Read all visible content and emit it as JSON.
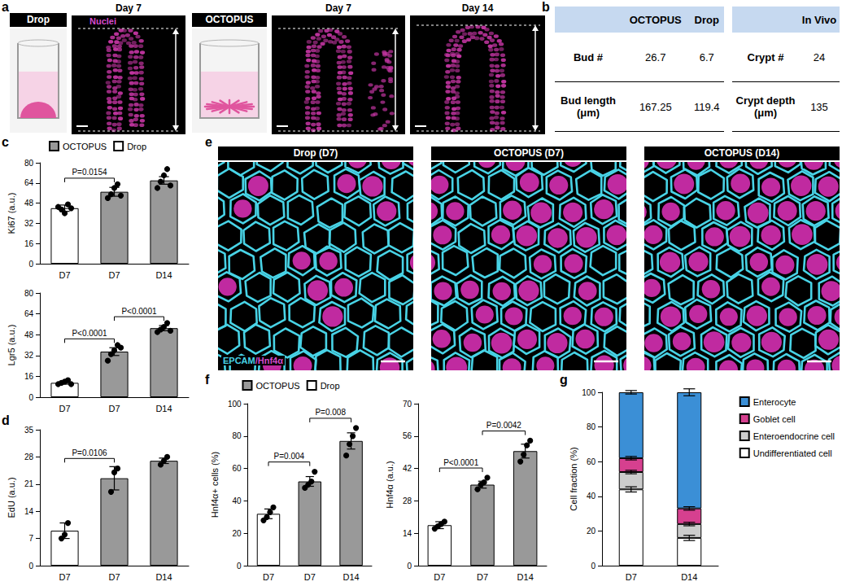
{
  "panel_labels": [
    "a",
    "b",
    "c",
    "d",
    "e",
    "f",
    "g"
  ],
  "panel_a": [
    {
      "header": "Drop",
      "images": [
        {
          "title": "Day 7",
          "stain": "Nuclei"
        }
      ]
    },
    {
      "header": "OCTOPUS",
      "images": [
        {
          "title": "Day 7"
        },
        {
          "title": "Day 14"
        }
      ]
    }
  ],
  "table": {
    "left": {
      "header": [
        "OCTOPUS",
        "Drop"
      ],
      "rows": [
        [
          "Bud #",
          26.7,
          6.7
        ],
        [
          "Bud length (μm)",
          167.25,
          119.4
        ]
      ]
    },
    "right": {
      "header": [
        "In Vivo"
      ],
      "rows": [
        [
          "Crypt #",
          24
        ],
        [
          "Crypt depth (μm)",
          135
        ]
      ]
    }
  },
  "panel_e": {
    "images": [
      "Drop (D7)",
      "OCTOPUS (D7)",
      "OCTOPUS (D14)"
    ],
    "stain": [
      "EPCAM",
      "/Hnf4α"
    ]
  },
  "chart_data": [
    {
      "type": "bar",
      "y_label": "Ki67 (a.u.)",
      "categories": [
        "D7",
        "D7",
        "D14"
      ],
      "series": [
        {
          "name": "OCTOPUS",
          "color": "#999999",
          "values": [
            null,
            57,
            66
          ],
          "errors": [
            null,
            3.5,
            3
          ],
          "points": [
            null,
            [
              52,
              55,
              60,
              63,
              54
            ],
            [
              60,
              65,
              70,
              75,
              62
            ]
          ]
        },
        {
          "name": "Drop",
          "color": "#ffffff",
          "values": [
            44,
            null,
            null
          ],
          "errors": [
            2.5,
            null,
            null
          ],
          "points": [
            [
              45,
              43,
              40,
              47,
              44
            ],
            null,
            null
          ]
        }
      ],
      "ylim": [
        0,
        80
      ],
      "yticks": [
        0,
        16,
        32,
        48,
        64,
        80
      ],
      "grid": false,
      "legend": "top",
      "annotations": [
        {
          "from": 0,
          "to": 1,
          "label": "P=0.0154"
        }
      ]
    },
    {
      "type": "bar",
      "y_label": "Lgr5 (a.u.)",
      "categories": [
        "D7",
        "D7",
        "D14"
      ],
      "series": [
        {
          "name": "OCTOPUS",
          "color": "#999999",
          "values": [
            null,
            35,
            53
          ],
          "errors": [
            null,
            3,
            2
          ],
          "points": [
            null,
            [
              28,
              33,
              36,
              40,
              38
            ],
            [
              50,
              52,
              54,
              57,
              51
            ]
          ]
        },
        {
          "name": "Drop",
          "color": "#ffffff",
          "values": [
            11,
            null,
            null
          ],
          "errors": [
            1,
            null,
            null
          ],
          "points": [
            [
              10,
              11,
              12,
              13,
              10
            ],
            null,
            null
          ]
        }
      ],
      "ylim": [
        0,
        80
      ],
      "yticks": [
        0,
        16,
        32,
        48,
        64,
        80
      ],
      "grid": false,
      "annotations": [
        {
          "from": 0,
          "to": 1,
          "label": "P<0.0001"
        },
        {
          "from": 1,
          "to": 2,
          "label": "P<0.0001"
        }
      ]
    },
    {
      "type": "bar",
      "y_label": "EdU (a.u.)",
      "categories": [
        "D7",
        "D7",
        "D14"
      ],
      "series": [
        {
          "name": "OCTOPUS",
          "color": "#999999",
          "values": [
            null,
            22.5,
            27
          ],
          "errors": [
            null,
            3,
            0.7
          ],
          "points": [
            null,
            [
              19,
              24,
              25
            ],
            [
              26,
              27,
              28
            ]
          ]
        },
        {
          "name": "Drop",
          "color": "#ffffff",
          "values": [
            9,
            null,
            null
          ],
          "errors": [
            2,
            null,
            null
          ],
          "points": [
            [
              7,
              8,
              11
            ],
            null,
            null
          ]
        }
      ],
      "ylim": [
        0,
        35
      ],
      "yticks": [
        0,
        7,
        14,
        21,
        28,
        35
      ],
      "grid": false,
      "annotations": [
        {
          "from": 0,
          "to": 1,
          "label": "P=0.0106"
        }
      ]
    },
    {
      "type": "bar",
      "y_label": "Hnf4α+ cells (%)",
      "categories": [
        "D7",
        "D7",
        "D14"
      ],
      "series": [
        {
          "name": "OCTOPUS",
          "color": "#999999",
          "values": [
            null,
            52,
            77
          ],
          "errors": [
            null,
            3,
            5
          ],
          "points": [
            null,
            [
              48,
              50,
              52,
              58
            ],
            [
              68,
              75,
              80,
              85
            ]
          ]
        },
        {
          "name": "Drop",
          "color": "#ffffff",
          "values": [
            32,
            null,
            null
          ],
          "errors": [
            3,
            null,
            null
          ],
          "points": [
            [
              28,
              30,
              33,
              36
            ],
            null,
            null
          ]
        }
      ],
      "ylim": [
        0,
        100
      ],
      "yticks": [
        0,
        20,
        40,
        60,
        80,
        100
      ],
      "grid": false,
      "legend": "top",
      "annotations": [
        {
          "from": 0,
          "to": 1,
          "label": "P=0.004"
        },
        {
          "from": 1,
          "to": 2,
          "label": "P=0.008"
        }
      ]
    },
    {
      "type": "bar",
      "y_label": "Hnf4α (a.u.)",
      "categories": [
        "D7",
        "D7",
        "D14"
      ],
      "series": [
        {
          "name": "OCTOPUS",
          "color": "#999999",
          "values": [
            null,
            35,
            49.5
          ],
          "errors": [
            null,
            1.5,
            3
          ],
          "points": [
            null,
            [
              33,
              35,
              36,
              38
            ],
            [
              45,
              48,
              52,
              54
            ]
          ]
        },
        {
          "name": "Drop",
          "color": "#ffffff",
          "values": [
            17.5,
            null,
            null
          ],
          "errors": [
            1.5,
            null,
            null
          ],
          "points": [
            [
              16,
              17,
              18,
              19
            ],
            null,
            null
          ]
        }
      ],
      "ylim": [
        0,
        70
      ],
      "yticks": [
        0,
        14,
        28,
        42,
        56,
        70
      ],
      "grid": false,
      "annotations": [
        {
          "from": 0,
          "to": 1,
          "label": "P<0.0001"
        },
        {
          "from": 1,
          "to": 2,
          "label": "P=0.0042"
        }
      ]
    },
    {
      "type": "bar",
      "stacked": true,
      "y_label": "Cell fraction (%)",
      "categories": [
        "D7",
        "D14"
      ],
      "series": [
        {
          "name": "Undifferentiated cell",
          "color": "#ffffff",
          "values": [
            44,
            16
          ],
          "errors": [
            1.5,
            1.5
          ]
        },
        {
          "name": "Enteroendocrine cell",
          "color": "#cccccc",
          "values": [
            10,
            8
          ],
          "errors": [
            1,
            1
          ]
        },
        {
          "name": "Goblet cell",
          "color": "#d6408f",
          "values": [
            8,
            9
          ],
          "errors": [
            1,
            1
          ]
        },
        {
          "name": "Enterocyte",
          "color": "#3b8fd6",
          "values": [
            38,
            67
          ],
          "errors": [
            1,
            2
          ]
        }
      ],
      "ylim": [
        0,
        100
      ],
      "yticks": [
        0,
        20,
        40,
        60,
        80,
        100
      ],
      "grid": false,
      "legend": "right"
    }
  ]
}
